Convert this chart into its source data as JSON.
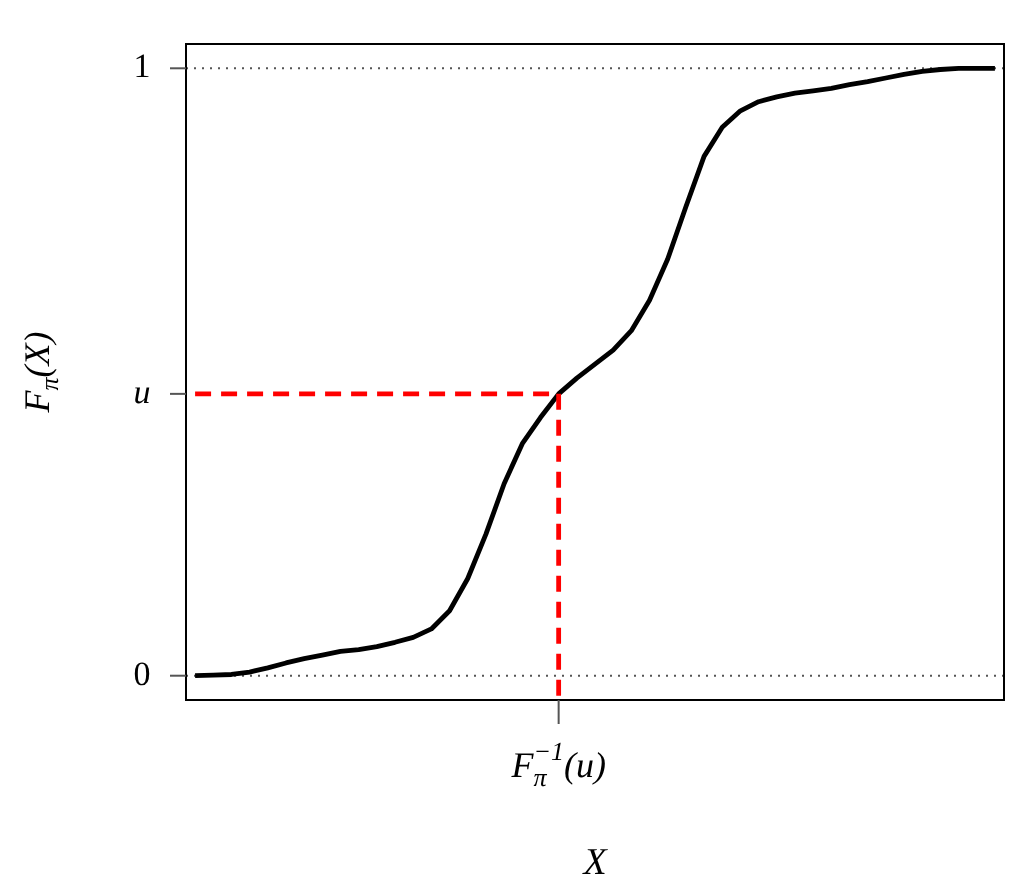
{
  "chart_data": {
    "type": "line",
    "xlabel": "X",
    "ylabel": "F$_{π}$(X)",
    "categories": [
      null,
      null,
      null,
      null,
      null,
      null,
      null,
      null,
      null,
      null,
      null,
      null,
      null,
      null,
      null,
      null,
      null,
      null,
      null,
      null,
      null,
      null,
      null,
      null,
      null,
      null,
      null,
      null,
      null,
      null,
      null,
      null,
      null,
      null,
      null,
      null,
      null,
      null,
      null,
      null,
      null,
      null,
      null,
      null,
      null
    ],
    "ylim": [
      -0.04,
      1.04
    ],
    "yticks": [
      0,
      {
        "value": 0.464,
        "label": "u"
      },
      1
    ],
    "annotations": [
      "F$_{π}$$^{−1}$(u)"
    ],
    "grid": false,
    "legend": false,
    "marker": "none",
    "ref_lines": [
      {
        "axis": "y",
        "value": 0,
        "color": "#555555",
        "line_style": "dotted"
      },
      {
        "axis": "y",
        "value": 1,
        "color": "#555555",
        "line_style": "dotted"
      }
    ],
    "series": [
      {
        "color": "#000000",
        "line_style": "solid",
        "values": [
          0,
          0.001,
          0.002,
          0.006,
          0.013,
          0.021,
          0.028,
          0.034,
          0.04,
          0.043,
          0.048,
          0.055,
          0.063,
          0.077,
          0.107,
          0.16,
          0.233,
          0.316,
          0.382,
          0.425,
          0.464,
          0.49,
          0.513,
          0.536,
          0.568,
          0.618,
          0.686,
          0.772,
          0.855,
          0.903,
          0.93,
          0.945,
          0.953,
          0.959,
          0.963,
          0.967,
          0.973,
          0.978,
          0.984,
          0.99,
          0.995,
          0.998,
          1,
          1,
          1
        ]
      },
      {
        "color": "#ff0000",
        "line_style": "dashed",
        "values": [
          0.464,
          0.464,
          0.464,
          0.464,
          0.464,
          0.464,
          0.464,
          0.464,
          0.464,
          0.464,
          0.464,
          0.464,
          0.464,
          0.464,
          0.464,
          0.464,
          0.464,
          0.464,
          0.464,
          0.464,
          0.464,
          null,
          null,
          null,
          null,
          null,
          null,
          null,
          null,
          null,
          null,
          null,
          null,
          null,
          null,
          null,
          null,
          null,
          null,
          null,
          null,
          null,
          null,
          null,
          null
        ]
      }
    ]
  }
}
